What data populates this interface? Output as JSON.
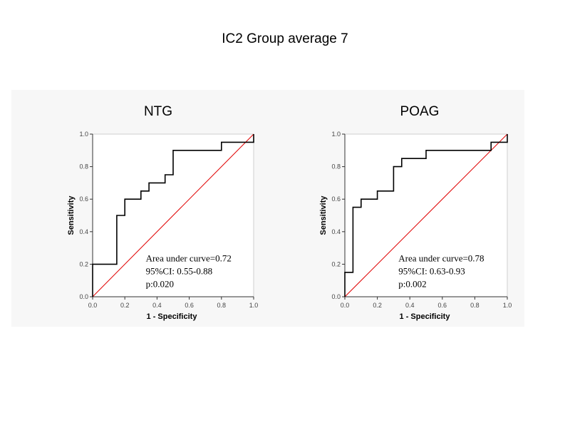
{
  "page_title": "IC2 Group average 7",
  "chart_data": [
    {
      "type": "line",
      "title": "NTG",
      "xlabel": "1 - Specificity",
      "ylabel": "Sensitivity",
      "xlim": [
        0,
        1
      ],
      "ylim": [
        0,
        1
      ],
      "xticks": [
        "0.0",
        "0.2",
        "0.4",
        "0.6",
        "0.8",
        "1.0"
      ],
      "yticks": [
        "0.0",
        "0.2",
        "0.4",
        "0.6",
        "0.8",
        "1.0"
      ],
      "series": [
        {
          "color": "#000000",
          "step": true,
          "x": [
            0.0,
            0.0,
            0.15,
            0.15,
            0.2,
            0.2,
            0.3,
            0.3,
            0.35,
            0.35,
            0.45,
            0.45,
            0.5,
            0.5,
            0.8,
            0.8,
            1.0,
            1.0
          ],
          "y": [
            0.0,
            0.2,
            0.2,
            0.5,
            0.5,
            0.6,
            0.6,
            0.65,
            0.65,
            0.7,
            0.7,
            0.75,
            0.75,
            0.9,
            0.9,
            0.95,
            0.95,
            1.0
          ]
        },
        {
          "color": "#e00000",
          "x": [
            0,
            1
          ],
          "y": [
            0,
            1
          ]
        }
      ],
      "annotations": [
        "Area under curve=0.72",
        "95%CI: 0.55-0.88",
        "p:0.020"
      ]
    },
    {
      "type": "line",
      "title": "POAG",
      "xlabel": "1 - Specificity",
      "ylabel": "Sensitivity",
      "xlim": [
        0,
        1
      ],
      "ylim": [
        0,
        1
      ],
      "xticks": [
        "0.0",
        "0.2",
        "0.4",
        "0.6",
        "0.8",
        "1.0"
      ],
      "yticks": [
        "0.0",
        "0.2",
        "0.4",
        "0.6",
        "0.8",
        "1.0"
      ],
      "series": [
        {
          "color": "#000000",
          "step": true,
          "x": [
            0.0,
            0.0,
            0.05,
            0.05,
            0.1,
            0.1,
            0.2,
            0.2,
            0.3,
            0.3,
            0.35,
            0.35,
            0.5,
            0.5,
            0.9,
            0.9,
            1.0,
            1.0
          ],
          "y": [
            0.0,
            0.15,
            0.15,
            0.55,
            0.55,
            0.6,
            0.6,
            0.65,
            0.65,
            0.8,
            0.8,
            0.85,
            0.85,
            0.9,
            0.9,
            0.95,
            0.95,
            1.0
          ]
        },
        {
          "color": "#e00000",
          "x": [
            0,
            1
          ],
          "y": [
            0,
            1
          ]
        }
      ],
      "annotations": [
        "Area under curve=0.78",
        "95%CI: 0.63-0.93",
        "p:0.002"
      ]
    }
  ]
}
